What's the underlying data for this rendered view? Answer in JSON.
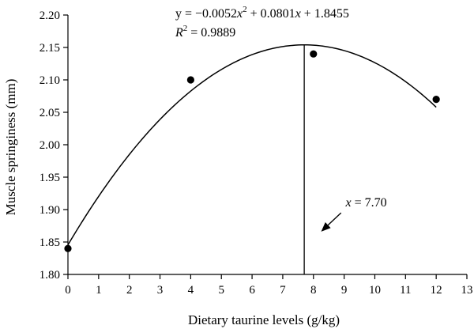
{
  "chart_data": {
    "type": "scatter",
    "xlabel": "Dietary taurine levels (g/kg)",
    "ylabel": "Muscle springiness (mm)",
    "xlim": [
      0,
      13
    ],
    "ylim": [
      1.8,
      2.2
    ],
    "x_ticks": [
      "0",
      "1",
      "2",
      "3",
      "4",
      "5",
      "6",
      "7",
      "8",
      "9",
      "10",
      "11",
      "12",
      "13"
    ],
    "y_ticks": [
      "1.80",
      "1.85",
      "1.90",
      "1.95",
      "2.00",
      "2.05",
      "2.10",
      "2.15",
      "2.20"
    ],
    "grid": false,
    "series": [
      {
        "points": [
          {
            "x": 0,
            "y": 1.84
          },
          {
            "x": 4,
            "y": 2.1
          },
          {
            "x": 8,
            "y": 2.14
          },
          {
            "x": 12,
            "y": 2.07
          }
        ]
      }
    ],
    "fit": {
      "type": "quadratic",
      "a": -0.0052,
      "b": 0.0801,
      "c": 1.8455,
      "x_range": [
        0,
        12
      ],
      "equation_parts": [
        "y = −0.0052",
        "x",
        "2",
        " + 0.0801",
        "x",
        " + 1.8455"
      ],
      "r2_label": "R",
      "r2_sup": "2",
      "r2_value": " = 0.9889"
    },
    "optimum_line": {
      "x": 7.7
    },
    "annotation": {
      "var": "x",
      "value": " = 7.70",
      "arrow_from": {
        "x": 8.9,
        "y": 1.895
      },
      "arrow_to": {
        "x": 8.25,
        "y": 1.866
      }
    }
  }
}
